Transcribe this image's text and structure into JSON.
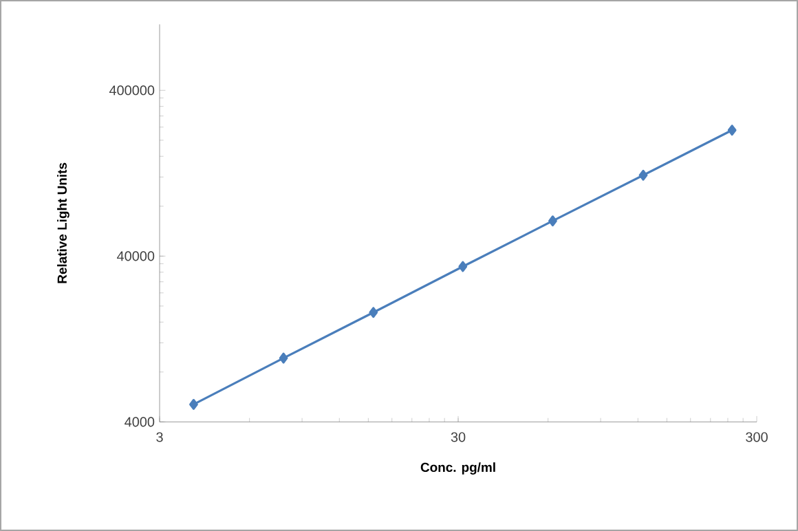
{
  "chart_data": {
    "type": "line",
    "xlabel": "Conc. pg/ml",
    "ylabel": "Relative Light Units",
    "log": "xy",
    "xlim": [
      3,
      300
    ],
    "xticks": [
      3,
      30,
      300
    ],
    "ylim": [
      4000,
      1000000
    ],
    "yticks": [
      4000,
      40000,
      400000
    ],
    "marker": "diamond",
    "line_style": "solid",
    "x": [
      3.9,
      7.8,
      15.6,
      31.1,
      62.2,
      125,
      248
    ],
    "series": [
      {
        "color": "#4a7ebb",
        "values": [
          5100,
          9700,
          18300,
          34600,
          65200,
          123000,
          230000
        ]
      }
    ]
  }
}
